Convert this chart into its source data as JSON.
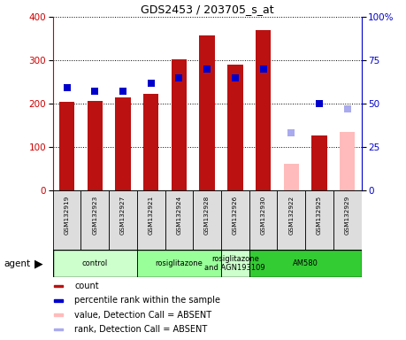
{
  "title": "GDS2453 / 203705_s_at",
  "samples": [
    "GSM132919",
    "GSM132923",
    "GSM132927",
    "GSM132921",
    "GSM132924",
    "GSM132928",
    "GSM132926",
    "GSM132930",
    "GSM132922",
    "GSM132925",
    "GSM132929"
  ],
  "count_values": [
    205,
    207,
    215,
    222,
    302,
    358,
    290,
    370,
    null,
    127,
    null
  ],
  "count_absent_values": [
    null,
    null,
    null,
    null,
    null,
    null,
    null,
    null,
    62,
    null,
    135
  ],
  "rank_values": [
    59,
    57,
    57,
    62,
    65,
    70,
    65,
    70,
    null,
    50,
    null
  ],
  "rank_absent_values": [
    null,
    null,
    null,
    null,
    null,
    null,
    null,
    null,
    33,
    null,
    47
  ],
  "groups": [
    {
      "label": "control",
      "start": 0,
      "end": 3,
      "color": "#ccffcc"
    },
    {
      "label": "rosiglitazone",
      "start": 3,
      "end": 6,
      "color": "#99ff99"
    },
    {
      "label": "rosiglitazone\nand AGN193109",
      "start": 6,
      "end": 7,
      "color": "#ccffcc"
    },
    {
      "label": "AM580",
      "start": 7,
      "end": 11,
      "color": "#33cc33"
    }
  ],
  "ylim_left": [
    0,
    400
  ],
  "ylim_right": [
    0,
    100
  ],
  "yticks_left": [
    0,
    100,
    200,
    300,
    400
  ],
  "yticks_right": [
    0,
    25,
    50,
    75,
    100
  ],
  "ytick_labels_right": [
    "0",
    "25",
    "50",
    "75",
    "100%"
  ],
  "bar_color_present": "#bb1111",
  "bar_color_absent": "#ffbbbb",
  "rank_color_present": "#0000cc",
  "rank_color_absent": "#aaaaee",
  "bar_width": 0.55,
  "rank_marker_size": 35,
  "background_color": "#ffffff",
  "plot_bg_color": "#ffffff",
  "agent_label": "agent",
  "legend_items": [
    {
      "label": "count",
      "color": "#bb1111"
    },
    {
      "label": "percentile rank within the sample",
      "color": "#0000cc"
    },
    {
      "label": "value, Detection Call = ABSENT",
      "color": "#ffbbbb"
    },
    {
      "label": "rank, Detection Call = ABSENT",
      "color": "#aaaaee"
    }
  ]
}
